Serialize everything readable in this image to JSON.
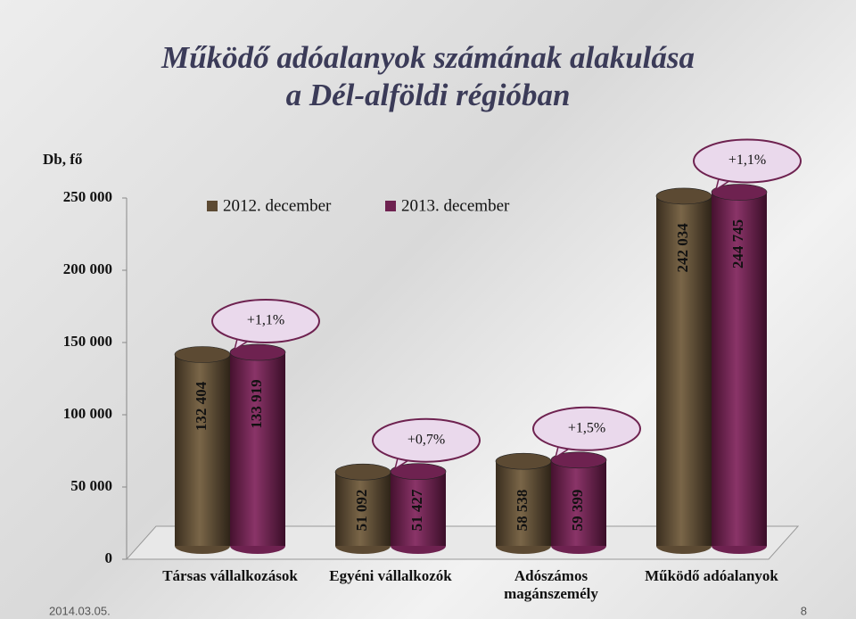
{
  "chart_data": {
    "type": "bar",
    "title_lines": [
      "Működő adóalanyok számának alakulása",
      "a Dél-alföldi régióban"
    ],
    "y_label": "Db, fő",
    "categories": [
      "Társas vállalkozások",
      "Egyéni vállalkozók",
      "Adószámos magánszemély",
      "Működő adóalanyok"
    ],
    "series": [
      {
        "name": "2012. december",
        "color": "#5c4a33",
        "values": [
          132404,
          51092,
          58538,
          242034
        ],
        "value_labels": [
          "132 404",
          "51 092",
          "58 538",
          "242 034"
        ]
      },
      {
        "name": "2013. december",
        "color": "#6e2250",
        "values": [
          133919,
          51427,
          59399,
          244745
        ],
        "value_labels": [
          "133 919",
          "51 427",
          "59 399",
          "244 745"
        ]
      }
    ],
    "changes": [
      "+1,1%",
      "+0,7%",
      "+1,5%",
      "+1,1%"
    ],
    "ylim": [
      0,
      250000
    ],
    "yticks": [
      0,
      {
        "value": 50000,
        "label": "50 000"
      },
      {
        "value": 100000,
        "label": "100 000"
      },
      {
        "value": 150000,
        "label": "150 000"
      },
      {
        "value": 200000,
        "label": "200 000"
      },
      {
        "value": 250000,
        "label": "250 000"
      }
    ],
    "date": "2014.03.05.",
    "page": "8"
  }
}
